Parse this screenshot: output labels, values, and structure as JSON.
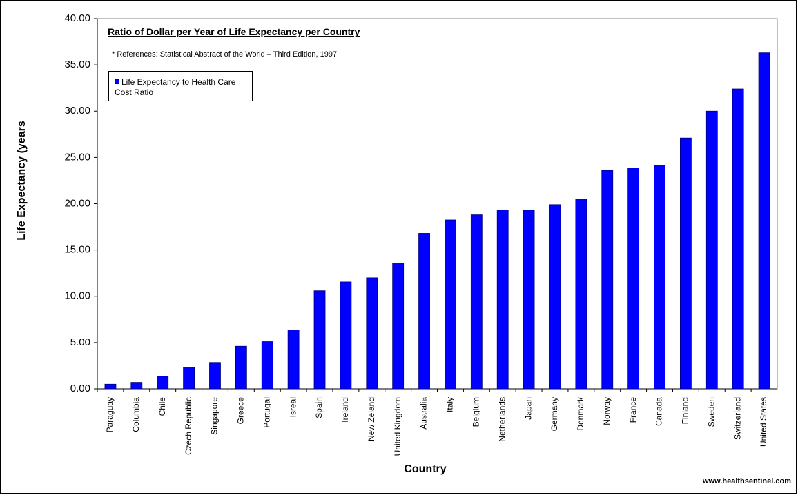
{
  "chart_data": {
    "type": "bar",
    "title": "Ratio of Dollar per Year of Life Expectancy per Country",
    "annotation": "* References: Statistical Abstract of the World – Third Edition, 1997",
    "y_label": "Life Expectancy (years",
    "x_label": "Country",
    "source": "www.healthsentinel.com",
    "categories": [
      "Paraguay",
      "Columbia",
      "Chile",
      "Czech Republic",
      "Singapore",
      "Greece",
      "Portugal",
      "Isreal",
      "Spain",
      "Ireland",
      "New Zeland",
      "United Kingdom",
      "Australia",
      "Italy",
      "Belgium",
      "Netherlands",
      "Japan",
      "Germany",
      "Denmark",
      "Norway",
      "France",
      "Canada",
      "Finland",
      "Sweden",
      "Switzerland",
      "United States"
    ],
    "series": [
      {
        "name": "Life Expectancy to Health Care Cost Ratio",
        "color": "#0000ff",
        "values": [
          0.5,
          0.7,
          1.35,
          2.35,
          2.85,
          4.6,
          5.1,
          6.35,
          10.6,
          11.55,
          12.0,
          13.6,
          16.8,
          18.25,
          18.8,
          19.3,
          19.3,
          19.9,
          20.5,
          23.6,
          23.85,
          24.15,
          27.1,
          30.0,
          32.4,
          36.3
        ]
      }
    ],
    "ylim": [
      0,
      40
    ],
    "yticks": [
      {
        "value": 0,
        "label": "0.00"
      },
      {
        "value": 5,
        "label": "5.00"
      },
      {
        "value": 10,
        "label": "10.00"
      },
      {
        "value": 15,
        "label": "15.00"
      },
      {
        "value": 20,
        "label": "20.00"
      },
      {
        "value": 25,
        "label": "25.00"
      },
      {
        "value": 30,
        "label": "30.00"
      },
      {
        "value": 35,
        "label": "35.00"
      },
      {
        "value": 40,
        "label": "40.00"
      }
    ],
    "grid": false,
    "legend": "top-left"
  }
}
